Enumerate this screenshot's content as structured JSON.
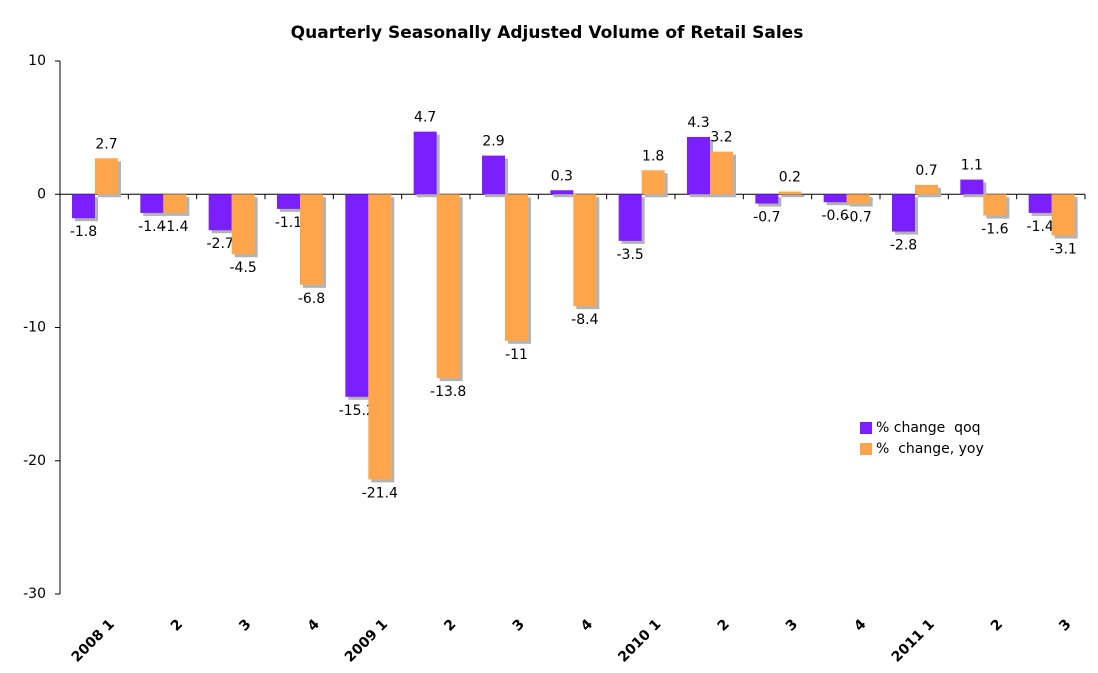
{
  "chart_data": {
    "type": "bar",
    "title": "Quarterly Seasonally Adjusted Volume of Retail Sales",
    "categories": [
      "2008 1",
      "2",
      "3",
      "4",
      "2009 1",
      "2",
      "3",
      "4",
      "2010 1",
      "2",
      "3",
      "4",
      "2011 1",
      "2",
      "3"
    ],
    "series": [
      {
        "name": "% change  qoq",
        "color": "#7b1fff",
        "values": [
          -1.8,
          -1.4,
          -2.7,
          -1.1,
          -15.2,
          4.7,
          2.9,
          0.3,
          -3.5,
          4.3,
          -0.7,
          -0.6,
          -2.8,
          1.1,
          -1.4
        ]
      },
      {
        "name": "%  change, yoy",
        "color": "#ffa64d",
        "values": [
          2.7,
          -1.4,
          -4.5,
          -6.8,
          -21.4,
          -13.8,
          -11,
          -8.4,
          1.8,
          3.2,
          0.2,
          -0.7,
          0.7,
          -1.6,
          -3.1
        ]
      }
    ],
    "ylim": [
      -30,
      10
    ],
    "yticks": [
      -30,
      -20,
      -10,
      0,
      10
    ]
  }
}
